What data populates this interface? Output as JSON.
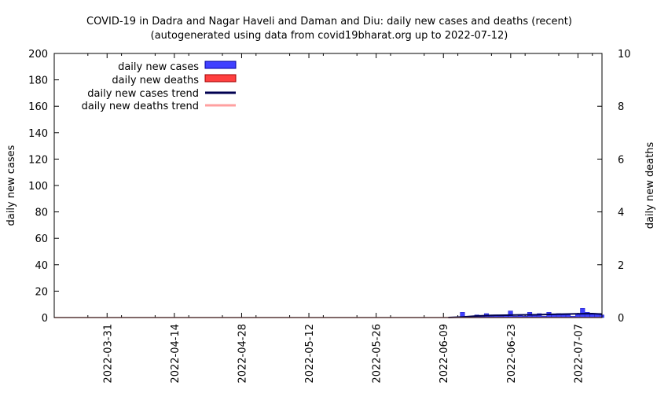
{
  "chart_data": {
    "type": "bar",
    "title": "COVID-19 in Dadra and Nagar Haveli and Daman and Diu: daily new cases and deaths (recent)",
    "subtitle": "(autogenerated using data from covid19bharat.org up to 2022-07-12)",
    "ylabel": "daily new cases",
    "y2label": "daily new deaths",
    "ylim": [
      0,
      200
    ],
    "y2lim": [
      0,
      10
    ],
    "yticks": [
      0,
      20,
      40,
      60,
      80,
      100,
      120,
      140,
      160,
      180,
      200
    ],
    "y2ticks": [
      0,
      2,
      4,
      6,
      8,
      10
    ],
    "x_start": "2022-03-20",
    "x_end": "2022-07-12",
    "xticks": [
      "2022-03-31",
      "2022-04-14",
      "2022-04-28",
      "2022-05-12",
      "2022-05-26",
      "2022-06-09",
      "2022-06-23",
      "2022-07-07"
    ],
    "legend_position": "top-left",
    "series": [
      {
        "name": "daily new cases",
        "kind": "bar",
        "color": "#4040ff",
        "dates": [
          "2022-06-13",
          "2022-06-14",
          "2022-06-15",
          "2022-06-16",
          "2022-06-17",
          "2022-06-18",
          "2022-06-19",
          "2022-06-20",
          "2022-06-21",
          "2022-06-22",
          "2022-06-23",
          "2022-06-24",
          "2022-06-25",
          "2022-06-26",
          "2022-06-27",
          "2022-06-28",
          "2022-06-29",
          "2022-06-30",
          "2022-07-01",
          "2022-07-02",
          "2022-07-03",
          "2022-07-04",
          "2022-07-05",
          "2022-07-06",
          "2022-07-07",
          "2022-07-08",
          "2022-07-09",
          "2022-07-10",
          "2022-07-11",
          "2022-07-12"
        ],
        "values": [
          4,
          1,
          1,
          2,
          1,
          3,
          1,
          2,
          1,
          2,
          5,
          1,
          2,
          1,
          4,
          2,
          3,
          1,
          4,
          2,
          3,
          2,
          2,
          1,
          3,
          7,
          4,
          3,
          3,
          2
        ]
      },
      {
        "name": "daily new deaths",
        "kind": "bar",
        "color": "#ff4040",
        "dates": [],
        "values": []
      },
      {
        "name": "daily new cases trend",
        "kind": "line",
        "color": "#000050",
        "dates": [
          "2022-06-10",
          "2022-06-13",
          "2022-06-16",
          "2022-06-19",
          "2022-06-22",
          "2022-06-25",
          "2022-06-28",
          "2022-07-01",
          "2022-07-04",
          "2022-07-07",
          "2022-07-10",
          "2022-07-12"
        ],
        "values": [
          0,
          0.5,
          1.2,
          1.6,
          1.8,
          2.0,
          2.1,
          2.4,
          2.6,
          2.8,
          3.0,
          2.6
        ]
      },
      {
        "name": "daily new deaths trend",
        "kind": "line",
        "color": "#ffa0a0",
        "dates": [
          "2022-03-20",
          "2022-07-12"
        ],
        "values": [
          0,
          0
        ]
      }
    ]
  }
}
